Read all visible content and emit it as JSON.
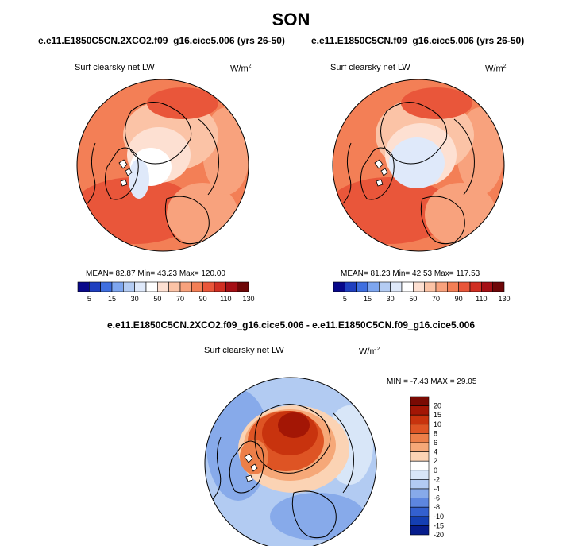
{
  "figure": {
    "title": "SON",
    "panel_a": {
      "case": "e.e11.E1850C5CN.2XCO2.f09_g16.cice5.006 (yrs 26-50)",
      "variable": "Surf clearsky net LW",
      "units": "W/m",
      "units_exp": "2",
      "stats": "MEAN=  82.87  Min=  43.23  Max= 120.00"
    },
    "panel_b": {
      "case": "e.e11.E1850C5CN.f09_g16.cice5.006 (yrs 26-50)",
      "variable": "Surf clearsky net LW",
      "units": "W/m",
      "units_exp": "2",
      "stats": "MEAN=  81.23  Min=  42.53  Max= 117.53"
    },
    "panel_diff": {
      "case": "e.e11.E1850C5CN.2XCO2.f09_g16.cice5.006 - e.e11.E1850C5CN.f09_g16.cice5.006",
      "variable": "Surf clearsky net LW",
      "units": "W/m",
      "units_exp": "2",
      "stats": "MIN =  -7.43 MAX =  29.05"
    }
  },
  "chart_data": [
    {
      "type": "heatmap",
      "projection": "north polar stereographic",
      "title": "e.e11.E1850C5CN.2XCO2.f09_g16.cice5.006 (yrs 26-50)",
      "variable": "Surf clearsky net LW",
      "units": "W/m2",
      "mean": 82.87,
      "min": 43.23,
      "max": 120.0,
      "colorbar": {
        "orientation": "horizontal",
        "levels": [
          5,
          10,
          15,
          20,
          30,
          40,
          50,
          60,
          70,
          80,
          90,
          100,
          110,
          120,
          130
        ],
        "tick_labels": [
          "5",
          "15",
          "30",
          "50",
          "70",
          "90",
          "110",
          "130"
        ]
      }
    },
    {
      "type": "heatmap",
      "projection": "north polar stereographic",
      "title": "e.e11.E1850C5CN.f09_g16.cice5.006 (yrs 26-50)",
      "variable": "Surf clearsky net LW",
      "units": "W/m2",
      "mean": 81.23,
      "min": 42.53,
      "max": 117.53,
      "colorbar": {
        "orientation": "horizontal",
        "levels": [
          5,
          10,
          15,
          20,
          30,
          40,
          50,
          60,
          70,
          80,
          90,
          100,
          110,
          120,
          130
        ],
        "tick_labels": [
          "5",
          "15",
          "30",
          "50",
          "70",
          "90",
          "110",
          "130"
        ]
      }
    },
    {
      "type": "heatmap",
      "projection": "north polar stereographic",
      "title": "e.e11.E1850C5CN.2XCO2.f09_g16.cice5.006 - e.e11.E1850C5CN.f09_g16.cice5.006",
      "variable": "Surf clearsky net LW",
      "units": "W/m2",
      "min": -7.43,
      "max": 29.05,
      "colorbar": {
        "orientation": "vertical",
        "levels": [
          20,
          15,
          10,
          8,
          6,
          4,
          2,
          0,
          -2,
          -4,
          -6,
          -8,
          -10,
          -15,
          -20
        ],
        "tick_labels": [
          "20",
          "15",
          "10",
          "8",
          "6",
          "4",
          "2",
          "0",
          "-2",
          "-4",
          "-6",
          "-8",
          "-10",
          "-15",
          "-20"
        ]
      }
    }
  ],
  "palettes": {
    "abs": [
      "#08088a",
      "#1f3fbf",
      "#3f6fe0",
      "#7ea6ef",
      "#b4ccf3",
      "#dfe9fa",
      "#ffffff",
      "#fde0d2",
      "#fbc3a6",
      "#f8a27d",
      "#f37f56",
      "#e9563a",
      "#d02e22",
      "#a50f15",
      "#6e0708"
    ],
    "diff": [
      "#7a0a03",
      "#a31605",
      "#c8330e",
      "#de5424",
      "#ed7f49",
      "#f6a878",
      "#fbd3b4",
      "#ffffff",
      "#d8e6f8",
      "#b2cbf2",
      "#87aaea",
      "#5d86df",
      "#3360cf",
      "#143fb3",
      "#061c8c"
    ]
  }
}
